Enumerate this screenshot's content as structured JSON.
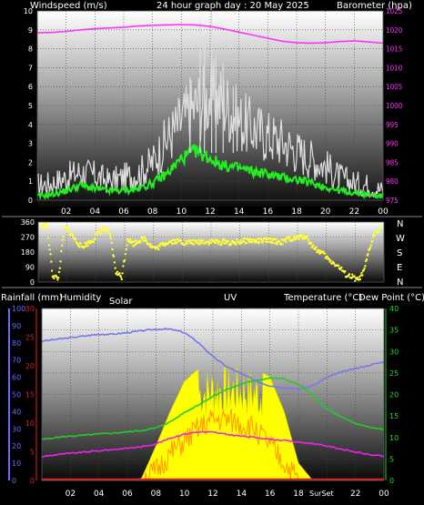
{
  "header": {
    "windspeed_label": "Windspeed (m/s)",
    "title": "24 hour graph day : 20 May 2025",
    "barometer_label": "Barometer (hpa)"
  },
  "compass": [
    "N",
    "W",
    "S",
    "E",
    "N"
  ],
  "lower_labels": {
    "rainfall": "Rainfall (mm)",
    "humidity": "Humidity",
    "solar": "Solar",
    "uv": "UV",
    "temperature": "Temperature (°C)",
    "dewpoint": "Dew Point (°C)",
    "sunrise_sunset": "SurSet"
  },
  "colors": {
    "windspeed_gust": "#dddddd",
    "windspeed_avg": "#22ee22",
    "barometer": "#ff33ff",
    "direction": "#ffff33",
    "humidity": "#7777ee",
    "temperature": "#22cc22",
    "dewpoint": "#ee22ee",
    "solar": "#ffff00",
    "uv": "#ff9900",
    "rainfall": "#e02020"
  },
  "chart_data": [
    {
      "type": "line",
      "name": "wind-barometer",
      "title": "24 hour graph day : 20 May 2025",
      "x_tick_labels": [
        "02",
        "04",
        "06",
        "08",
        "10",
        "12",
        "14",
        "16",
        "18",
        "20",
        "22",
        "00"
      ],
      "y_left": {
        "label": "Windspeed (m/s)",
        "ticks": [
          0,
          1,
          2,
          3,
          4,
          5,
          6,
          7,
          8,
          9,
          10
        ],
        "range": [
          0,
          10
        ]
      },
      "y_right": {
        "label": "Barometer (hpa)",
        "ticks": [
          975,
          980,
          985,
          990,
          995,
          1000,
          1005,
          1010,
          1015,
          1020,
          1025
        ],
        "range": [
          975,
          1025
        ]
      },
      "x_hours": [
        0,
        1,
        2,
        3,
        4,
        5,
        6,
        7,
        8,
        9,
        10,
        11,
        12,
        13,
        14,
        15,
        16,
        17,
        18,
        19,
        20,
        21,
        22,
        23,
        24
      ],
      "series": [
        {
          "values": [
            0.8,
            0.9,
            1.2,
            1.5,
            1.3,
            1.0,
            1.2,
            1.4,
            2.0,
            3.2,
            4.2,
            5.0,
            5.5,
            5.2,
            4.2,
            3.8,
            3.4,
            3.1,
            2.6,
            2.2,
            1.8,
            1.2,
            0.9,
            0.8,
            0.5
          ]
        },
        {
          "values": [
            0.2,
            0.3,
            0.5,
            0.8,
            0.6,
            0.5,
            0.5,
            0.6,
            0.9,
            1.4,
            2.2,
            2.6,
            2.2,
            1.8,
            1.7,
            1.5,
            1.4,
            1.2,
            1.1,
            0.9,
            0.7,
            0.5,
            0.4,
            0.3,
            0.2
          ]
        },
        {
          "values": [
            1019.2,
            1019.3,
            1019.6,
            1020.0,
            1020.3,
            1020.5,
            1020.7,
            1021.0,
            1021.2,
            1021.3,
            1021.4,
            1021.3,
            1020.9,
            1020.2,
            1019.4,
            1018.6,
            1017.8,
            1017.0,
            1016.6,
            1016.5,
            1016.6,
            1016.9,
            1017.1,
            1016.8,
            1016.5
          ]
        }
      ]
    },
    {
      "type": "scatter",
      "name": "wind-direction",
      "y_ticks": [
        0,
        90,
        180,
        270,
        360
      ],
      "y_range": [
        0,
        360
      ],
      "x_tick_labels": [
        "02",
        "04",
        "06",
        "08",
        "10",
        "12",
        "14",
        "16",
        "18",
        "20",
        "22",
        "00"
      ],
      "series": [
        {
          "x": [
            0.2,
            0.6,
            1.0,
            1.4,
            1.8,
            2.2,
            2.6,
            3.0,
            3.4,
            3.8,
            4.2,
            4.6,
            5.0,
            5.4,
            5.8,
            6.2,
            6.6,
            7.0,
            7.4,
            7.8,
            8.2,
            8.6,
            9.0,
            9.4,
            9.8,
            10.2,
            10.6,
            11.0,
            11.4,
            11.8,
            12.2,
            12.6,
            13.0,
            13.4,
            13.8,
            14.2,
            14.6,
            15.0,
            15.4,
            15.8,
            16.2,
            16.6,
            17.0,
            17.4,
            17.8,
            18.2,
            18.6,
            19.0,
            19.4,
            19.8,
            20.2,
            20.6,
            21.0,
            21.4,
            21.8,
            22.2,
            22.6,
            23.0,
            23.4,
            23.8
          ],
          "y": [
            330,
            345,
            40,
            20,
            320,
            300,
            250,
            210,
            230,
            250,
            300,
            320,
            280,
            60,
            30,
            260,
            230,
            250,
            260,
            220,
            200,
            225,
            240,
            245,
            245,
            235,
            240,
            235,
            245,
            240,
            245,
            235,
            245,
            230,
            240,
            245,
            250,
            245,
            245,
            250,
            250,
            240,
            240,
            260,
            260,
            270,
            275,
            220,
            190,
            170,
            130,
            110,
            80,
            40,
            30,
            10,
            60,
            200,
            300,
            330
          ]
        }
      ]
    },
    {
      "type": "line",
      "name": "temperature-humidity-solar",
      "x_tick_labels": [
        "02",
        "04",
        "06",
        "08",
        "10",
        "12",
        "14",
        "16",
        "18",
        "20",
        "22",
        "00"
      ],
      "y_humidity": {
        "ticks": [
          0,
          10,
          20,
          30,
          40,
          50,
          60,
          70,
          80,
          90,
          100
        ],
        "range": [
          0,
          100
        ]
      },
      "y_rain": {
        "ticks": [
          0,
          5,
          10,
          15,
          20,
          25,
          30
        ],
        "range": [
          0,
          30
        ]
      },
      "y_temp": {
        "ticks": [
          0,
          5,
          10,
          15,
          20,
          25,
          30,
          35,
          40
        ],
        "range": [
          0,
          40
        ]
      },
      "x_hours": [
        0,
        1,
        2,
        3,
        4,
        5,
        6,
        7,
        8,
        9,
        10,
        11,
        12,
        13,
        14,
        15,
        16,
        17,
        18,
        19,
        20,
        21,
        22,
        23,
        24
      ],
      "series": [
        {
          "values": [
            81,
            82,
            83,
            84,
            85,
            85,
            86,
            87,
            88,
            88,
            86,
            80,
            72,
            66,
            62,
            58,
            55,
            54,
            53,
            55,
            60,
            63,
            65,
            67,
            69
          ]
        },
        {
          "values": [
            9.5,
            10,
            10.3,
            10.5,
            10.8,
            11,
            11.3,
            11.6,
            12.2,
            13.6,
            15.8,
            17.6,
            19.6,
            21.2,
            22.4,
            23.3,
            23.8,
            23.6,
            22.3,
            19.8,
            16.6,
            14.8,
            13.2,
            12.3,
            11.9
          ]
        },
        {
          "values": [
            5.5,
            6.0,
            6.3,
            6.6,
            6.9,
            7.2,
            7.5,
            7.8,
            8.5,
            9.8,
            10.8,
            11.3,
            11.2,
            10.7,
            10.3,
            10.0,
            9.6,
            9.3,
            8.9,
            8.6,
            8.0,
            7.3,
            6.6,
            6.0,
            5.6
          ]
        },
        {
          "values": [
            0,
            0,
            0,
            0,
            0,
            0,
            0,
            0.5,
            8,
            16,
            23,
            26,
            27,
            27,
            27,
            26,
            24,
            16,
            4,
            0,
            0,
            0,
            0,
            0,
            0
          ]
        },
        {
          "values": [
            0,
            0,
            0,
            0,
            0,
            0,
            0,
            0,
            2,
            6,
            9,
            12,
            14,
            14,
            13,
            12,
            8,
            4,
            0,
            0,
            0,
            0,
            0,
            0,
            0
          ]
        },
        {
          "values": [
            0,
            0,
            0,
            0,
            0,
            0,
            0,
            0,
            0,
            0,
            0,
            0,
            0,
            0,
            0,
            0,
            0,
            0,
            0,
            0,
            0,
            0,
            0,
            0,
            0
          ]
        }
      ]
    }
  ]
}
